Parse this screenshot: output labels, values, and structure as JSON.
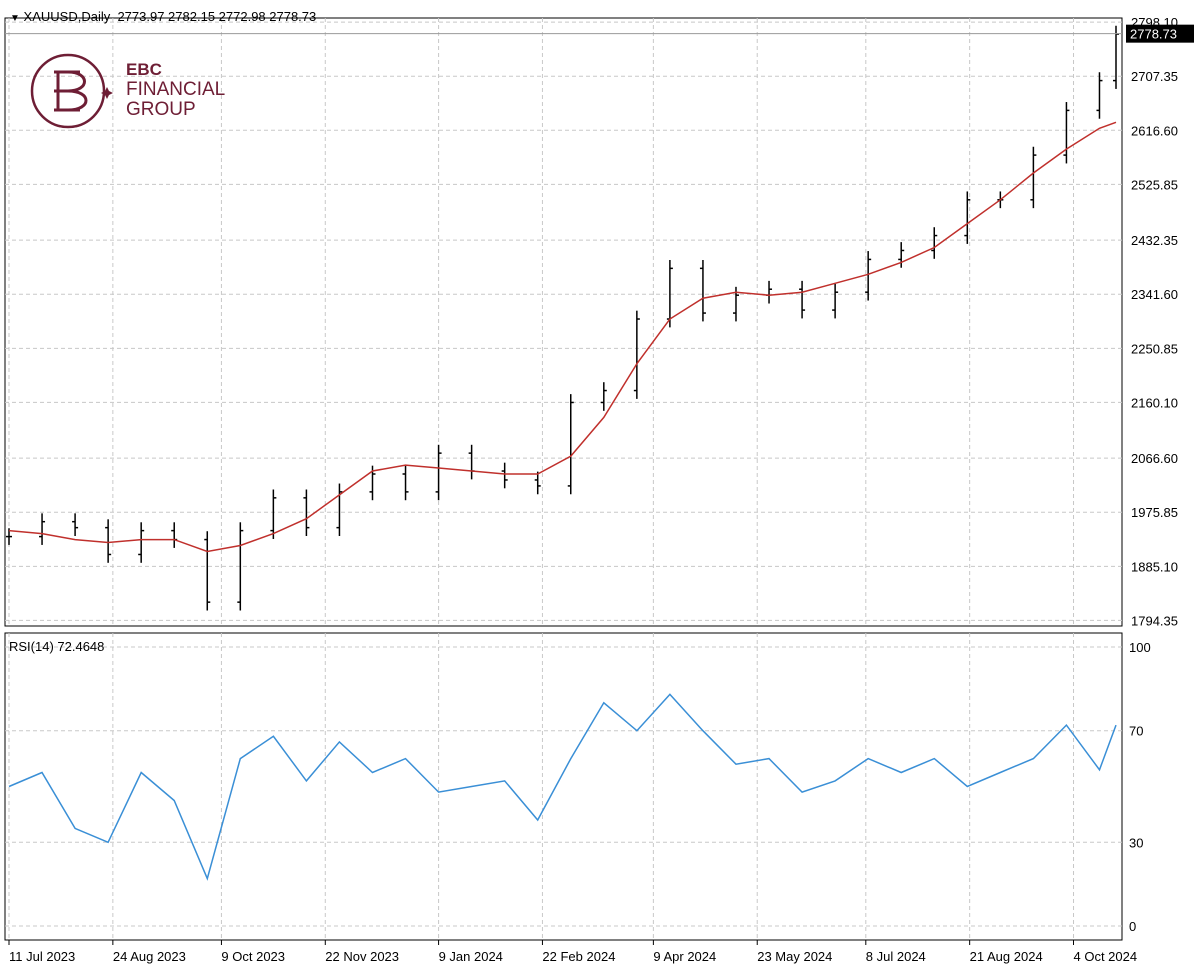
{
  "header": {
    "symbol": "XAUUSD,Daily",
    "ohlc": "2773.97 2782.15 2772.98 2778.73"
  },
  "logo": {
    "line1": "EBC",
    "line2": "FINANCIAL",
    "line3": "GROUP"
  },
  "colors": {
    "price": "#000000",
    "ma": "#c0302c",
    "rsi": "#3a8fd6",
    "grid": "#c8c8c8",
    "logo": "#6e1e35"
  },
  "chart_data": [
    {
      "type": "line",
      "title": "XAUUSD,Daily",
      "price_axis": {
        "ticks": [
          2798.1,
          2707.35,
          2616.6,
          2525.85,
          2432.35,
          2341.6,
          2250.85,
          2160.1,
          2066.6,
          1975.85,
          1885.1,
          1794.35
        ],
        "tick_labels": [
          "2798.10",
          "2707.35",
          "2616.60",
          "2525.85",
          "2432.35",
          "2341.60",
          "2250.85",
          "2160.10",
          "2066.60",
          "1975.85",
          "1885.10",
          "1794.35"
        ],
        "ylim": [
          1785,
          2805
        ]
      },
      "last_price": "2778.73",
      "x": [
        "2023-07-11",
        "2023-07-25",
        "2023-08-08",
        "2023-08-22",
        "2023-09-05",
        "2023-09-19",
        "2023-10-03",
        "2023-10-17",
        "2023-10-31",
        "2023-11-14",
        "2023-11-28",
        "2023-12-12",
        "2023-12-26",
        "2024-01-09",
        "2024-01-23",
        "2024-02-06",
        "2024-02-20",
        "2024-03-05",
        "2024-03-19",
        "2024-04-02",
        "2024-04-16",
        "2024-04-30",
        "2024-05-14",
        "2024-05-28",
        "2024-06-11",
        "2024-06-25",
        "2024-07-09",
        "2024-07-23",
        "2024-08-06",
        "2024-08-20",
        "2024-09-03",
        "2024-09-17",
        "2024-10-01",
        "2024-10-15",
        "2024-10-22"
      ],
      "series": [
        {
          "style": "bars",
          "values": [
            1935,
            1960,
            1950,
            1905,
            1945,
            1930,
            1825,
            1945,
            2000,
            1950,
            2010,
            2040,
            2010,
            2075,
            2045,
            2030,
            2020,
            2160,
            2180,
            2300,
            2385,
            2310,
            2340,
            2350,
            2315,
            2345,
            2400,
            2415,
            2440,
            2500,
            2500,
            2575,
            2650,
            2700,
            2778
          ]
        },
        {
          "style": "line",
          "values": [
            1945,
            1940,
            1930,
            1925,
            1930,
            1930,
            1910,
            1920,
            1940,
            1965,
            2005,
            2045,
            2055,
            2050,
            2045,
            2040,
            2040,
            2070,
            2135,
            2225,
            2300,
            2335,
            2345,
            2340,
            2345,
            2360,
            2375,
            2395,
            2420,
            2460,
            2500,
            2545,
            2585,
            2620,
            2630
          ]
        }
      ]
    },
    {
      "type": "line",
      "title": "RSI(14) 72.4648",
      "y_tick_labels": [
        "100",
        "70",
        "30",
        "0"
      ],
      "y_ticks": [
        100,
        70,
        30,
        0
      ],
      "ylim": [
        0,
        100
      ],
      "x": [
        "2023-07-11",
        "2023-07-25",
        "2023-08-08",
        "2023-08-22",
        "2023-09-05",
        "2023-09-19",
        "2023-10-03",
        "2023-10-17",
        "2023-10-31",
        "2023-11-14",
        "2023-11-28",
        "2023-12-12",
        "2023-12-26",
        "2024-01-09",
        "2024-01-23",
        "2024-02-06",
        "2024-02-20",
        "2024-03-05",
        "2024-03-19",
        "2024-04-02",
        "2024-04-16",
        "2024-04-30",
        "2024-05-14",
        "2024-05-28",
        "2024-06-11",
        "2024-06-25",
        "2024-07-09",
        "2024-07-23",
        "2024-08-06",
        "2024-08-20",
        "2024-09-03",
        "2024-09-17",
        "2024-10-01",
        "2024-10-15",
        "2024-10-22"
      ],
      "series": [
        {
          "values": [
            50,
            55,
            35,
            30,
            55,
            45,
            17,
            60,
            68,
            52,
            66,
            55,
            60,
            48,
            50,
            52,
            38,
            60,
            80,
            70,
            83,
            70,
            58,
            60,
            48,
            52,
            60,
            55,
            60,
            50,
            55,
            60,
            72,
            56,
            72
          ]
        }
      ]
    }
  ],
  "x_axis": {
    "labels": [
      "11 Jul 2023",
      "24 Aug 2023",
      "9 Oct 2023",
      "22 Nov 2023",
      "9 Jan 2024",
      "22 Feb 2024",
      "9 Apr 2024",
      "23 May 2024",
      "8 Jul 2024",
      "21 Aug 2024",
      "4 Oct 2024"
    ],
    "dates": [
      "2023-07-11",
      "2023-08-24",
      "2023-10-09",
      "2023-11-22",
      "2024-01-09",
      "2024-02-22",
      "2024-04-09",
      "2024-05-23",
      "2024-07-08",
      "2024-08-21",
      "2024-10-04"
    ]
  }
}
